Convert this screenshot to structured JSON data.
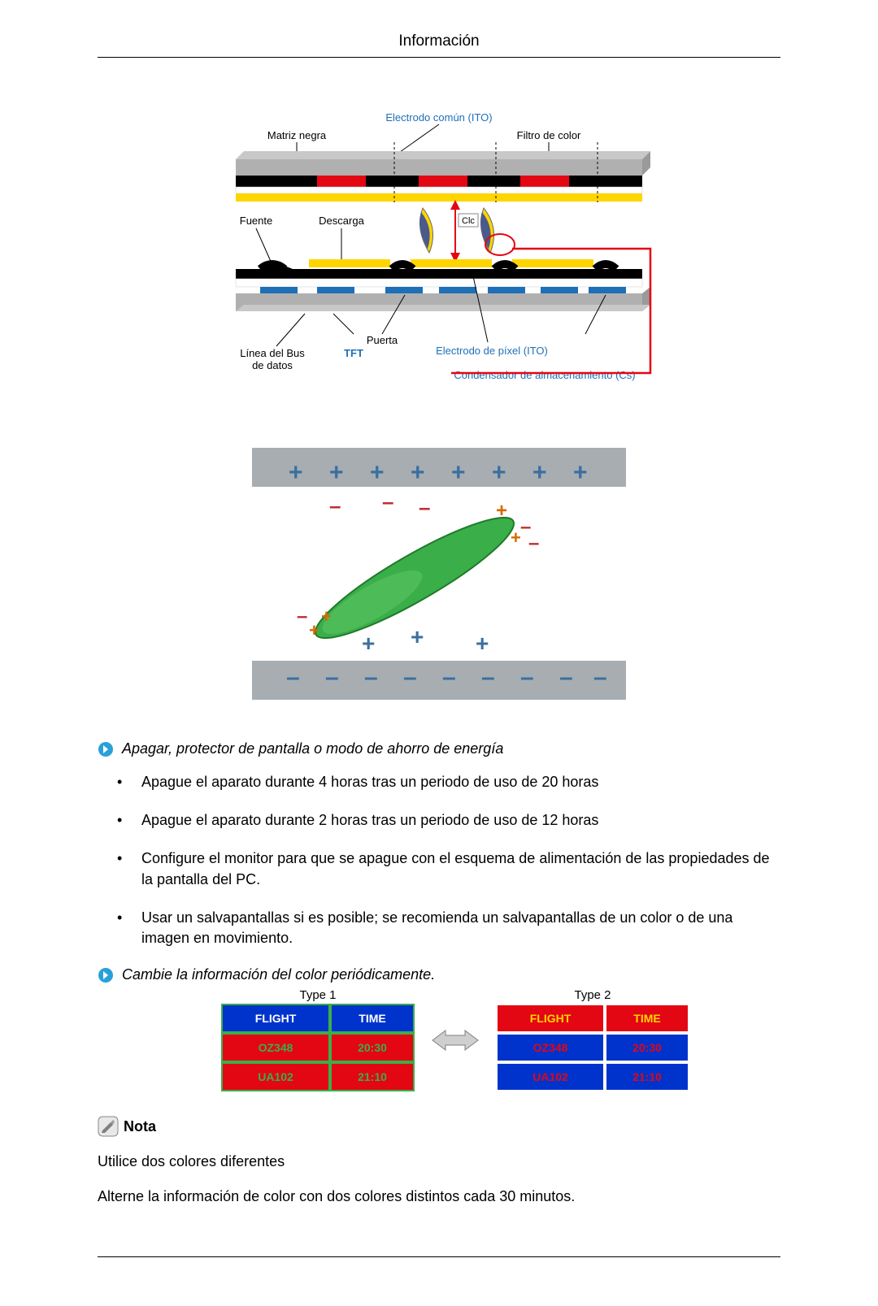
{
  "page": {
    "header_title": "Información"
  },
  "diagram1": {
    "background": "#ffffff",
    "gray_layer": "#b0b0b0",
    "black_layer": "#000000",
    "white_layer": "#ffffff",
    "red_layer": "#e30613",
    "yellow_layer": "#ffd500",
    "blue_layer": "#1d70b7",
    "label_blue": "#1d70b7",
    "clc_label": "Clc",
    "leader_color": "#000000",
    "labels": {
      "electrodo_comun": "Electrodo común (ITO)",
      "matriz_negra": "Matriz negra",
      "filtro_color": "Filtro de color",
      "fuente": "Fuente",
      "descarga": "Descarga",
      "puerta": "Puerta",
      "electrodo_pixel": "Electrodo de píxel (ITO)",
      "linea_bus_1": "Línea del Bus",
      "linea_bus_2": "de datos",
      "tft": "TFT",
      "condensador": "Condensador de almacenamiento (Cs)"
    }
  },
  "diagram2": {
    "bar_gray": "#a7adb0",
    "background": "#ffffff",
    "plus_color": "#3b6fa0",
    "minus_color": "#c03030",
    "ellipse_fill": "#3aae49",
    "ellipse_stroke": "#1f7a2a",
    "plus_near_color": "#d66a00"
  },
  "section1_title": "Apagar, protector de pantalla o modo de ahorro de energía",
  "bullets": [
    "Apague el aparato durante 4 horas tras un periodo de uso de 20 horas",
    "Apague el aparato durante 2 horas tras un periodo de uso de 12 horas",
    "Configure el monitor para que se apague con el esquema de alimentación de las propiedades de la pantalla del PC.",
    "Usar un salvapantallas si es posible; se recomienda un salvapantallas de un color o de una imagen en movimiento."
  ],
  "section2_title": "Cambie la información del color periódicamente.",
  "tables": {
    "type1": {
      "caption": "Type 1",
      "header_bg": "#0033cc",
      "header_text": "#ffffff",
      "row_bg": "#e30613",
      "row_text": "#3aae49",
      "border": "#3aae49",
      "columns": [
        "FLIGHT",
        "TIME"
      ],
      "rows": [
        [
          "OZ348",
          "20:30"
        ],
        [
          "UA102",
          "21:10"
        ]
      ]
    },
    "type2": {
      "caption": "Type 2",
      "header_bg": "#e30613",
      "header_text": "#ffd500",
      "row_bg": "#0033cc",
      "row_text": "#e30613",
      "border": "#ffffff",
      "columns": [
        "FLIGHT",
        "TIME"
      ],
      "rows": [
        [
          "OZ348",
          "20:30"
        ],
        [
          "UA102",
          "21:10"
        ]
      ]
    }
  },
  "note_label": " Nota",
  "para1": "Utilice dos colores diferentes",
  "para2": "Alterne la información de color con dos colores distintos cada 30 minutos."
}
